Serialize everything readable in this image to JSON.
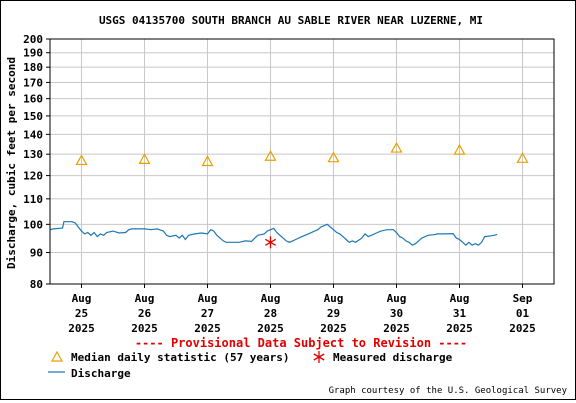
{
  "chart_data": {
    "type": "line",
    "title": "USGS 04135700 SOUTH BRANCH AU SABLE RIVER NEAR LUZERNE, MI",
    "ylabel": "Discharge, cubic feet per second",
    "xlabel": "",
    "y_scale": "log",
    "ylim": [
      80,
      200
    ],
    "y_ticks": [
      80,
      90,
      100,
      110,
      120,
      130,
      140,
      150,
      160,
      170,
      180,
      190,
      200
    ],
    "y_tick_labels": [
      "80",
      "90",
      "100",
      "110",
      "120",
      "130",
      "140",
      "150",
      "160",
      "170",
      "180",
      "190",
      "200"
    ],
    "x_ticks": [
      {
        "label": [
          "Aug",
          "25",
          "2025"
        ],
        "day": 25
      },
      {
        "label": [
          "Aug",
          "26",
          "2025"
        ],
        "day": 26
      },
      {
        "label": [
          "Aug",
          "27",
          "2025"
        ],
        "day": 27
      },
      {
        "label": [
          "Aug",
          "28",
          "2025"
        ],
        "day": 28
      },
      {
        "label": [
          "Aug",
          "29",
          "2025"
        ],
        "day": 29
      },
      {
        "label": [
          "Aug",
          "30",
          "2025"
        ],
        "day": 30
      },
      {
        "label": [
          "Aug",
          "31",
          "2025"
        ],
        "day": 31
      },
      {
        "label": [
          "Sep",
          "01",
          "2025"
        ],
        "day": 32
      }
    ],
    "xlim_days": [
      24.5,
      32.5
    ],
    "grid": true,
    "series": [
      {
        "name": "Discharge",
        "color": "#1f77b4",
        "points": [
          [
            24.5,
            98
          ],
          [
            24.55,
            98.3
          ],
          [
            24.7,
            98.6
          ],
          [
            24.72,
            101
          ],
          [
            24.85,
            101
          ],
          [
            24.9,
            100.5
          ],
          [
            24.95,
            99
          ],
          [
            25.0,
            97.5
          ],
          [
            25.05,
            96.5
          ],
          [
            25.1,
            97
          ],
          [
            25.15,
            96
          ],
          [
            25.2,
            97
          ],
          [
            25.25,
            95.5
          ],
          [
            25.3,
            96.5
          ],
          [
            25.35,
            96
          ],
          [
            25.4,
            97
          ],
          [
            25.5,
            97.5
          ],
          [
            25.6,
            96.8
          ],
          [
            25.7,
            97
          ],
          [
            25.75,
            98
          ],
          [
            25.8,
            98.3
          ],
          [
            26.0,
            98.3
          ],
          [
            26.1,
            98
          ],
          [
            26.2,
            98.3
          ],
          [
            26.3,
            97.5
          ],
          [
            26.35,
            96
          ],
          [
            26.4,
            95.5
          ],
          [
            26.5,
            96
          ],
          [
            26.55,
            95
          ],
          [
            26.6,
            96
          ],
          [
            26.65,
            94.5
          ],
          [
            26.7,
            96
          ],
          [
            26.8,
            96.5
          ],
          [
            26.9,
            96.8
          ],
          [
            27.0,
            96.5
          ],
          [
            27.05,
            98
          ],
          [
            27.1,
            97.5
          ],
          [
            27.15,
            96
          ],
          [
            27.2,
            95
          ],
          [
            27.25,
            94
          ],
          [
            27.3,
            93.5
          ],
          [
            27.5,
            93.5
          ],
          [
            27.6,
            94
          ],
          [
            27.7,
            93.8
          ],
          [
            27.75,
            95
          ],
          [
            27.8,
            96
          ],
          [
            27.9,
            96.5
          ],
          [
            27.95,
            97.5
          ],
          [
            28.0,
            98
          ],
          [
            28.05,
            98.5
          ],
          [
            28.1,
            97
          ],
          [
            28.15,
            96
          ],
          [
            28.2,
            95
          ],
          [
            28.25,
            94
          ],
          [
            28.3,
            93.5
          ],
          [
            28.35,
            94
          ],
          [
            28.4,
            94.5
          ],
          [
            28.5,
            95.5
          ],
          [
            28.6,
            96.5
          ],
          [
            28.7,
            97.5
          ],
          [
            28.75,
            98
          ],
          [
            28.8,
            99
          ],
          [
            28.85,
            99.5
          ],
          [
            28.9,
            100
          ],
          [
            28.95,
            99
          ],
          [
            29.0,
            98
          ],
          [
            29.05,
            97
          ],
          [
            29.1,
            96.5
          ],
          [
            29.15,
            95.5
          ],
          [
            29.2,
            94.5
          ],
          [
            29.25,
            93.5
          ],
          [
            29.3,
            94
          ],
          [
            29.35,
            93.5
          ],
          [
            29.45,
            95
          ],
          [
            29.5,
            96.5
          ],
          [
            29.55,
            95.5
          ],
          [
            29.6,
            96
          ],
          [
            29.7,
            97
          ],
          [
            29.75,
            97.5
          ],
          [
            29.85,
            98
          ],
          [
            29.95,
            98
          ],
          [
            30.0,
            97
          ],
          [
            30.05,
            95.5
          ],
          [
            30.1,
            95
          ],
          [
            30.15,
            94
          ],
          [
            30.2,
            93.5
          ],
          [
            30.25,
            92.5
          ],
          [
            30.3,
            93
          ],
          [
            30.35,
            94
          ],
          [
            30.4,
            95
          ],
          [
            30.5,
            96
          ],
          [
            30.6,
            96.2
          ],
          [
            30.65,
            96.5
          ],
          [
            30.75,
            96.5
          ],
          [
            30.9,
            96.6
          ],
          [
            30.95,
            95
          ],
          [
            31.0,
            94.5
          ],
          [
            31.05,
            93.5
          ],
          [
            31.1,
            92.5
          ],
          [
            31.15,
            93.5
          ],
          [
            31.2,
            92.5
          ],
          [
            31.25,
            93
          ],
          [
            31.3,
            92.5
          ],
          [
            31.35,
            93.5
          ],
          [
            31.4,
            95.5
          ],
          [
            31.5,
            95.8
          ],
          [
            31.55,
            96
          ],
          [
            31.6,
            96.3
          ]
        ]
      }
    ],
    "median": {
      "name": "Median daily statistic (57 years)",
      "color": "#e8a000",
      "points": [
        [
          25,
          127
        ],
        [
          26,
          127.5
        ],
        [
          27,
          126.5
        ],
        [
          28,
          129
        ],
        [
          29,
          128.3
        ],
        [
          30,
          133
        ],
        [
          31,
          132
        ],
        [
          32,
          128
        ]
      ]
    },
    "measured": {
      "name": "Measured discharge",
      "color": "#dd0000",
      "points": [
        [
          28,
          93.5
        ]
      ]
    },
    "provisional_note": "---- Provisional Data Subject to Revision ----",
    "credit": "Graph courtesy of the U.S. Geological Survey",
    "legend_placement": "bottom-left"
  }
}
